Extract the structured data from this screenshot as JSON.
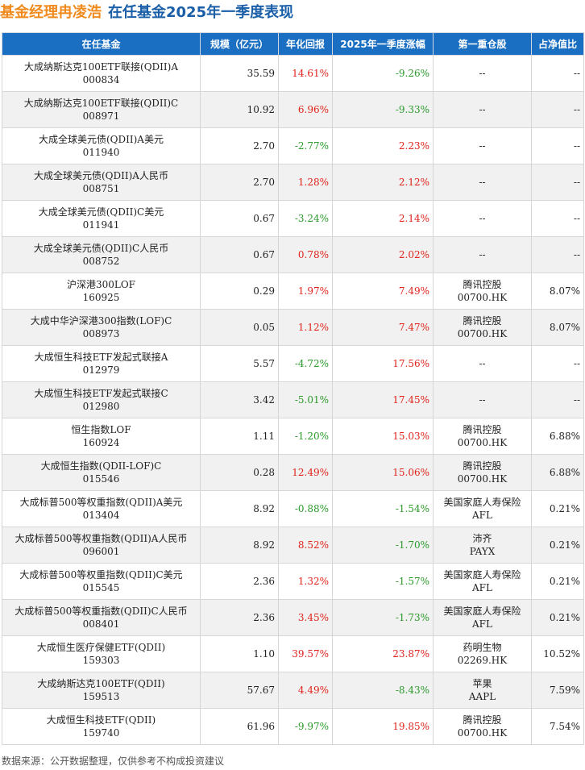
{
  "title": {
    "manager": "基金经理冉凌浩",
    "subtitle": "在任基金2025年一季度表现"
  },
  "table": {
    "headers": [
      "在任基金",
      "规模（亿元）",
      "年化回报",
      "2025年一季度涨幅",
      "第一重仓股",
      "占净值比"
    ],
    "rows": [
      {
        "name": "大成纳斯达克100ETF联接(QDII)A",
        "code": "000834",
        "scale": "35.59",
        "annual": "14.61%",
        "q1": "-9.26%",
        "stock": "--",
        "ticker": "",
        "ratio": "--"
      },
      {
        "name": "大成纳斯达克100ETF联接(QDII)C",
        "code": "008971",
        "scale": "10.92",
        "annual": "6.96%",
        "q1": "-9.33%",
        "stock": "--",
        "ticker": "",
        "ratio": "--"
      },
      {
        "name": "大成全球美元债(QDII)A美元",
        "code": "011940",
        "scale": "2.70",
        "annual": "-2.77%",
        "q1": "2.23%",
        "stock": "--",
        "ticker": "",
        "ratio": "--"
      },
      {
        "name": "大成全球美元债(QDII)A人民币",
        "code": "008751",
        "scale": "2.70",
        "annual": "1.28%",
        "q1": "2.12%",
        "stock": "--",
        "ticker": "",
        "ratio": "--"
      },
      {
        "name": "大成全球美元债(QDII)C美元",
        "code": "011941",
        "scale": "0.67",
        "annual": "-3.24%",
        "q1": "2.14%",
        "stock": "--",
        "ticker": "",
        "ratio": "--"
      },
      {
        "name": "大成全球美元债(QDII)C人民币",
        "code": "008752",
        "scale": "0.67",
        "annual": "0.78%",
        "q1": "2.02%",
        "stock": "--",
        "ticker": "",
        "ratio": "--"
      },
      {
        "name": "沪深港300LOF",
        "code": "160925",
        "scale": "0.29",
        "annual": "1.97%",
        "q1": "7.49%",
        "stock": "腾讯控股",
        "ticker": "00700.HK",
        "ratio": "8.07%"
      },
      {
        "name": "大成中华沪深港300指数(LOF)C",
        "code": "008973",
        "scale": "0.05",
        "annual": "1.12%",
        "q1": "7.47%",
        "stock": "腾讯控股",
        "ticker": "00700.HK",
        "ratio": "8.07%"
      },
      {
        "name": "大成恒生科技ETF发起式联接A",
        "code": "012979",
        "scale": "5.57",
        "annual": "-4.72%",
        "q1": "17.56%",
        "stock": "--",
        "ticker": "",
        "ratio": "--"
      },
      {
        "name": "大成恒生科技ETF发起式联接C",
        "code": "012980",
        "scale": "3.42",
        "annual": "-5.01%",
        "q1": "17.45%",
        "stock": "--",
        "ticker": "",
        "ratio": "--"
      },
      {
        "name": "恒生指数LOF",
        "code": "160924",
        "scale": "1.11",
        "annual": "-1.20%",
        "q1": "15.03%",
        "stock": "腾讯控股",
        "ticker": "00700.HK",
        "ratio": "6.88%"
      },
      {
        "name": "大成恒生指数(QDII-LOF)C",
        "code": "015546",
        "scale": "0.28",
        "annual": "12.49%",
        "q1": "15.06%",
        "stock": "腾讯控股",
        "ticker": "00700.HK",
        "ratio": "6.88%"
      },
      {
        "name": "大成标普500等权重指数(QDII)A美元",
        "code": "013404",
        "scale": "8.92",
        "annual": "-0.88%",
        "q1": "-1.54%",
        "stock": "美国家庭人寿保险",
        "ticker": "AFL",
        "ratio": "0.21%"
      },
      {
        "name": "大成标普500等权重指数(QDII)A人民币",
        "code": "096001",
        "scale": "8.92",
        "annual": "8.52%",
        "q1": "-1.70%",
        "stock": "沛齐",
        "ticker": "PAYX",
        "ratio": "0.21%"
      },
      {
        "name": "大成标普500等权重指数(QDII)C美元",
        "code": "015545",
        "scale": "2.36",
        "annual": "1.32%",
        "q1": "-1.57%",
        "stock": "美国家庭人寿保险",
        "ticker": "AFL",
        "ratio": "0.21%"
      },
      {
        "name": "大成标普500等权重指数(QDII)C人民币",
        "code": "008401",
        "scale": "2.36",
        "annual": "3.45%",
        "q1": "-1.73%",
        "stock": "美国家庭人寿保险",
        "ticker": "AFL",
        "ratio": "0.21%"
      },
      {
        "name": "大成恒生医疗保健ETF(QDII)",
        "code": "159303",
        "scale": "1.10",
        "annual": "39.57%",
        "q1": "23.87%",
        "stock": "药明生物",
        "ticker": "02269.HK",
        "ratio": "10.52%"
      },
      {
        "name": "大成纳斯达克100ETF(QDII)",
        "code": "159513",
        "scale": "57.67",
        "annual": "4.49%",
        "q1": "-8.43%",
        "stock": "苹果",
        "ticker": "AAPL",
        "ratio": "7.59%"
      },
      {
        "name": "大成恒生科技ETF(QDII)",
        "code": "159740",
        "scale": "61.96",
        "annual": "-9.97%",
        "q1": "19.85%",
        "stock": "腾讯控股",
        "ticker": "00700.HK",
        "ratio": "7.54%"
      }
    ]
  },
  "footer": "数据来源：公开数据整理，仅供参考不构成投资建议",
  "colors": {
    "header_bg": "#1a6fc2",
    "title_orange": "#f08a1c",
    "title_blue": "#1b5fa8",
    "positive": "#e0231b",
    "negative": "#2a9a2a"
  }
}
